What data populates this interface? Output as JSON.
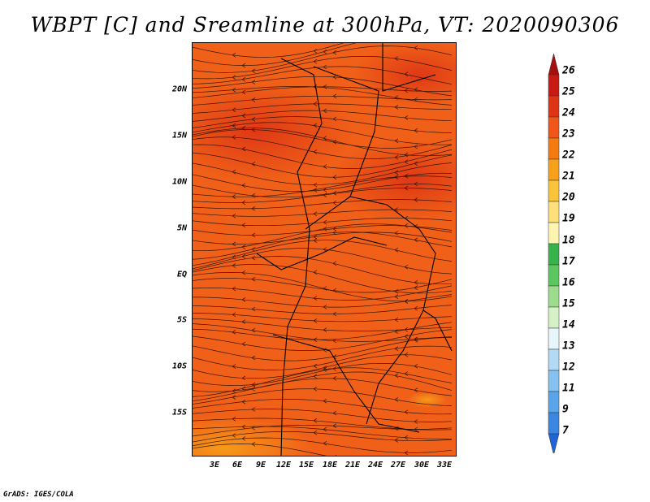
{
  "title": "WBPT [C] and Sreamline at 300hPa, VT: 2020090306",
  "footer": "GrADS: IGES/COLA",
  "map": {
    "lat_ticks": [
      "20N",
      "15N",
      "10N",
      "5N",
      "EQ",
      "5S",
      "10S",
      "15S"
    ],
    "lon_ticks": [
      "3E",
      "6E",
      "9E",
      "12E",
      "15E",
      "18E",
      "21E",
      "24E",
      "27E",
      "30E",
      "33E"
    ]
  },
  "colorbar": {
    "labels": [
      "26",
      "25",
      "24",
      "23",
      "22",
      "21",
      "20",
      "19",
      "18",
      "17",
      "16",
      "15",
      "14",
      "13",
      "12",
      "11",
      "9",
      "7"
    ],
    "colors": [
      "#a50f0f",
      "#c81a12",
      "#dd3415",
      "#f0561a",
      "#f57a0f",
      "#f7a01a",
      "#fac43a",
      "#fde07a",
      "#fff5b0",
      "#37b24d",
      "#5cc75f",
      "#9ddc8d",
      "#d4f2c6",
      "#e8f6fb",
      "#b3daf5",
      "#85c2f0",
      "#5aa5ea",
      "#3b86e0",
      "#1f64d8"
    ]
  }
}
